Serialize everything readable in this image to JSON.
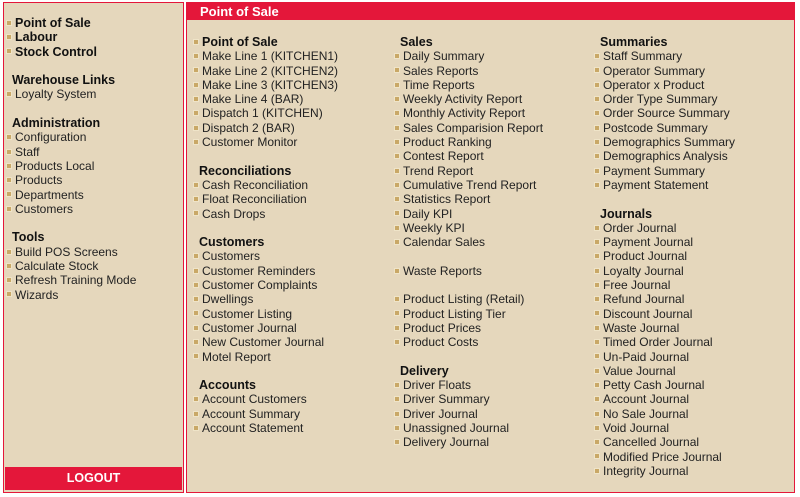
{
  "colors": {
    "accent": "#e4173a",
    "background": "#e5d7bc",
    "bullet": "#c9a867"
  },
  "left": {
    "sections": [
      {
        "title": "",
        "items": [
          {
            "label": "Point of Sale",
            "bold": true
          },
          {
            "label": "Labour",
            "bold": true
          },
          {
            "label": "Stock Control",
            "bold": true
          }
        ]
      },
      {
        "title": "Warehouse Links",
        "items": [
          {
            "label": "Loyalty System"
          }
        ]
      },
      {
        "title": "Administration",
        "items": [
          {
            "label": "Configuration"
          },
          {
            "label": "Staff"
          },
          {
            "label": "Products Local"
          },
          {
            "label": "Products"
          },
          {
            "label": "Departments"
          },
          {
            "label": "Customers"
          }
        ]
      },
      {
        "title": "Tools",
        "items": [
          {
            "label": "Build POS Screens"
          },
          {
            "label": "Calculate Stock"
          },
          {
            "label": "Refresh Training Mode"
          },
          {
            "label": "Wizards"
          }
        ]
      }
    ],
    "logout_label": "LOGOUT"
  },
  "main": {
    "title": "Point of Sale",
    "columns": [
      [
        {
          "type": "heading",
          "label": "Point of Sale",
          "bullet": true
        },
        {
          "label": "Make Line 1 (KITCHEN1)"
        },
        {
          "label": "Make Line 2 (KITCHEN2)"
        },
        {
          "label": "Make Line 3 (KITCHEN3)"
        },
        {
          "label": "Make Line 4 (BAR)"
        },
        {
          "label": "Dispatch 1 (KITCHEN)"
        },
        {
          "label": "Dispatch 2 (BAR)"
        },
        {
          "label": "Customer Monitor"
        },
        {
          "type": "blank"
        },
        {
          "type": "heading",
          "label": "Reconciliations"
        },
        {
          "label": "Cash Reconciliation"
        },
        {
          "label": "Float Reconciliation"
        },
        {
          "label": "Cash Drops"
        },
        {
          "type": "blank"
        },
        {
          "type": "heading",
          "label": "Customers"
        },
        {
          "label": "Customers"
        },
        {
          "label": "Customer Reminders"
        },
        {
          "label": "Customer Complaints"
        },
        {
          "label": "Dwellings"
        },
        {
          "label": "Customer Listing"
        },
        {
          "label": "Customer Journal"
        },
        {
          "label": "New Customer Journal"
        },
        {
          "label": "Motel Report"
        },
        {
          "type": "blank"
        },
        {
          "type": "heading",
          "label": "Accounts"
        },
        {
          "label": "Account Customers"
        },
        {
          "label": "Account Summary"
        },
        {
          "label": "Account Statement"
        }
      ],
      [
        {
          "type": "heading",
          "label": "Sales"
        },
        {
          "label": "Daily Summary"
        },
        {
          "label": "Sales Reports"
        },
        {
          "label": "Time Reports"
        },
        {
          "label": "Weekly Activity Report"
        },
        {
          "label": "Monthly Activity Report"
        },
        {
          "label": "Sales Comparision Report"
        },
        {
          "label": "Product Ranking"
        },
        {
          "label": "Contest Report"
        },
        {
          "label": "Trend Report"
        },
        {
          "label": "Cumulative Trend Report"
        },
        {
          "label": "Statistics Report"
        },
        {
          "label": "Daily KPI"
        },
        {
          "label": "Weekly KPI"
        },
        {
          "label": "Calendar Sales"
        },
        {
          "type": "blank"
        },
        {
          "label": "Waste Reports"
        },
        {
          "type": "blank"
        },
        {
          "label": "Product Listing (Retail)"
        },
        {
          "label": "Product Listing Tier"
        },
        {
          "label": "Product Prices"
        },
        {
          "label": "Product Costs"
        },
        {
          "type": "blank"
        },
        {
          "type": "heading",
          "label": "Delivery"
        },
        {
          "label": "Driver Floats"
        },
        {
          "label": "Driver Summary"
        },
        {
          "label": "Driver Journal"
        },
        {
          "label": "Unassigned Journal"
        },
        {
          "label": "Delivery Journal"
        }
      ],
      [
        {
          "type": "heading",
          "label": "Summaries"
        },
        {
          "label": "Staff Summary"
        },
        {
          "label": "Operator Summary"
        },
        {
          "label": "Operator x Product"
        },
        {
          "label": "Order Type Summary"
        },
        {
          "label": "Order Source Summary"
        },
        {
          "label": "Postcode Summary"
        },
        {
          "label": "Demographics Summary"
        },
        {
          "label": "Demographics Analysis"
        },
        {
          "label": "Payment Summary"
        },
        {
          "label": "Payment Statement"
        },
        {
          "type": "blank"
        },
        {
          "type": "heading",
          "label": "Journals"
        },
        {
          "label": "Order Journal"
        },
        {
          "label": "Payment Journal"
        },
        {
          "label": "Product Journal"
        },
        {
          "label": "Loyalty Journal"
        },
        {
          "label": "Free Journal"
        },
        {
          "label": "Refund Journal"
        },
        {
          "label": "Discount Journal"
        },
        {
          "label": "Waste Journal"
        },
        {
          "label": "Timed Order Journal"
        },
        {
          "label": "Un-Paid Journal"
        },
        {
          "label": "Value Journal"
        },
        {
          "label": "Petty Cash Journal"
        },
        {
          "label": "Account Journal"
        },
        {
          "label": "No Sale Journal"
        },
        {
          "label": "Void Journal"
        },
        {
          "label": "Cancelled Journal"
        },
        {
          "label": "Modified Price Journal"
        },
        {
          "label": "Integrity Journal"
        }
      ]
    ]
  }
}
